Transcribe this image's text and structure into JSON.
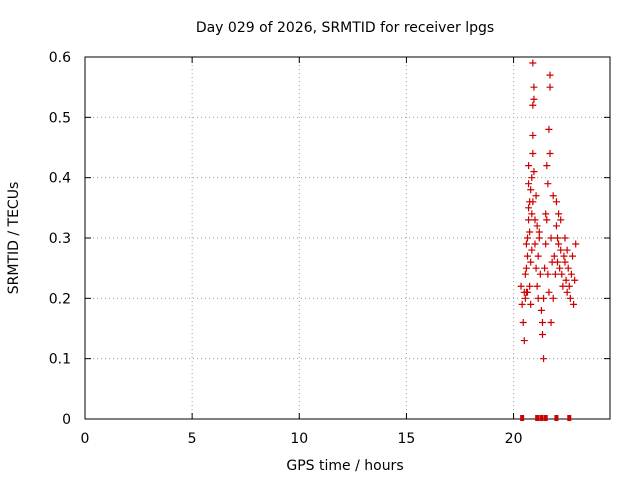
{
  "chart_data": {
    "type": "scatter",
    "title": "Day 029 of 2026, SRMTID for receiver lpgs",
    "xlabel": "GPS time / hours",
    "ylabel": "SRMTID / TECUs",
    "xlim": [
      0,
      24.5
    ],
    "ylim": [
      0,
      0.6
    ],
    "xticks": [
      0,
      5,
      10,
      15,
      20
    ],
    "xtick_labels": [
      "0",
      "5",
      "10",
      "15",
      "20"
    ],
    "yticks": [
      0,
      0.1,
      0.2,
      0.3,
      0.4,
      0.5,
      0.6
    ],
    "ytick_labels": [
      "0",
      "0.1",
      "0.2",
      "0.3",
      "0.4",
      "0.5",
      "0.6"
    ],
    "grid": true,
    "marker": "+",
    "color": "#cc0000",
    "series": [
      {
        "name": "lpgs",
        "points": [
          [
            20.35,
            0.22
          ],
          [
            20.4,
            0.19
          ],
          [
            20.45,
            0.16
          ],
          [
            20.5,
            0.13
          ],
          [
            20.5,
            0.21
          ],
          [
            20.55,
            0.24
          ],
          [
            20.55,
            0.2
          ],
          [
            20.6,
            0.25
          ],
          [
            20.6,
            0.21
          ],
          [
            20.6,
            0.29
          ],
          [
            20.65,
            0.27
          ],
          [
            20.65,
            0.3
          ],
          [
            20.65,
            0.21
          ],
          [
            20.7,
            0.35
          ],
          [
            20.7,
            0.33
          ],
          [
            20.7,
            0.39
          ],
          [
            20.7,
            0.42
          ],
          [
            20.75,
            0.36
          ],
          [
            20.75,
            0.31
          ],
          [
            20.75,
            0.22
          ],
          [
            20.8,
            0.38
          ],
          [
            20.8,
            0.26
          ],
          [
            20.8,
            0.19
          ],
          [
            20.85,
            0.34
          ],
          [
            20.85,
            0.4
          ],
          [
            20.85,
            0.28
          ],
          [
            20.9,
            0.44
          ],
          [
            20.9,
            0.59
          ],
          [
            20.9,
            0.52
          ],
          [
            20.9,
            0.47
          ],
          [
            20.9,
            0.36
          ],
          [
            20.95,
            0.55
          ],
          [
            20.95,
            0.53
          ],
          [
            20.95,
            0.41
          ],
          [
            21.0,
            0.33
          ],
          [
            21.0,
            0.29
          ],
          [
            21.05,
            0.25
          ],
          [
            21.05,
            0.37
          ],
          [
            21.1,
            0.32
          ],
          [
            21.1,
            0.22
          ],
          [
            21.15,
            0.27
          ],
          [
            21.15,
            0.2
          ],
          [
            21.2,
            0.31
          ],
          [
            21.2,
            0.3
          ],
          [
            21.25,
            0.24
          ],
          [
            21.3,
            0.18
          ],
          [
            21.35,
            0.16
          ],
          [
            21.35,
            0.14
          ],
          [
            21.4,
            0.1
          ],
          [
            21.4,
            0.2
          ],
          [
            21.45,
            0.25
          ],
          [
            21.5,
            0.34
          ],
          [
            21.5,
            0.29
          ],
          [
            21.55,
            0.42
          ],
          [
            21.55,
            0.33
          ],
          [
            21.6,
            0.39
          ],
          [
            21.6,
            0.24
          ],
          [
            21.65,
            0.48
          ],
          [
            21.65,
            0.21
          ],
          [
            21.7,
            0.57
          ],
          [
            21.7,
            0.55
          ],
          [
            21.7,
            0.44
          ],
          [
            21.75,
            0.3
          ],
          [
            21.75,
            0.16
          ],
          [
            21.8,
            0.26
          ],
          [
            21.85,
            0.2
          ],
          [
            21.85,
            0.37
          ],
          [
            21.9,
            0.27
          ],
          [
            21.95,
            0.24
          ],
          [
            22.0,
            0.36
          ],
          [
            22.0,
            0.32
          ],
          [
            22.05,
            0.3
          ],
          [
            22.05,
            0.26
          ],
          [
            22.1,
            0.34
          ],
          [
            22.1,
            0.29
          ],
          [
            22.15,
            0.25
          ],
          [
            22.2,
            0.33
          ],
          [
            22.2,
            0.28
          ],
          [
            22.25,
            0.24
          ],
          [
            22.3,
            0.22
          ],
          [
            22.35,
            0.27
          ],
          [
            22.4,
            0.3
          ],
          [
            22.4,
            0.26
          ],
          [
            22.45,
            0.23
          ],
          [
            22.5,
            0.21
          ],
          [
            22.5,
            0.28
          ],
          [
            22.55,
            0.25
          ],
          [
            22.6,
            0.22
          ],
          [
            22.65,
            0.2
          ],
          [
            22.7,
            0.24
          ],
          [
            22.75,
            0.27
          ],
          [
            22.8,
            0.19
          ],
          [
            22.85,
            0.23
          ],
          [
            22.9,
            0.29
          ]
        ]
      }
    ],
    "baseline_markers": [
      20.4,
      21.1,
      21.3,
      21.5,
      22.0,
      22.6
    ]
  }
}
